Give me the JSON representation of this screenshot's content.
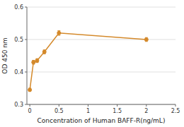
{
  "chart_data": {
    "type": "line",
    "xlabel": "Concentration of Human BAFF-R(ng/mL)",
    "ylabel": "OD 450 nm",
    "x": [
      0.0,
      0.0625,
      0.125,
      0.25,
      0.5,
      2.0
    ],
    "series": [
      {
        "color": "#d4892a",
        "marker": "circle",
        "line_style": "solid",
        "values": [
          0.345,
          0.43,
          0.435,
          0.462,
          0.52,
          0.5
        ],
        "errors": [
          0.005,
          0.006,
          0.006,
          0.006,
          0.007,
          0.006
        ]
      }
    ],
    "xlim": [
      -0.05,
      2.5
    ],
    "ylim": [
      0.3,
      0.6
    ],
    "xticks": [
      0,
      0.5,
      1,
      1.5,
      2,
      2.5
    ],
    "yticks": [
      0.3,
      0.4,
      0.5,
      0.6
    ],
    "grid": true
  }
}
